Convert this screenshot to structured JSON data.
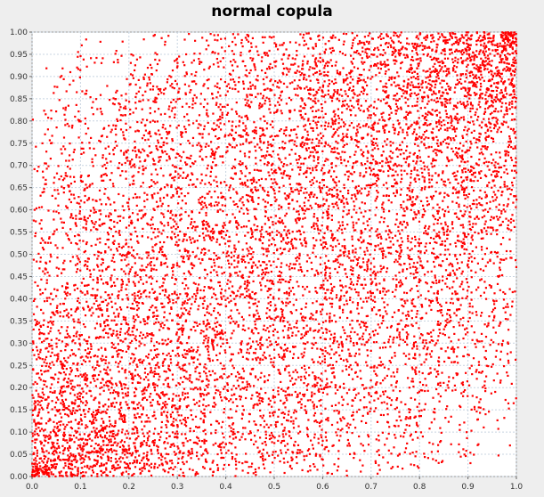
{
  "chart_data": {
    "type": "scatter",
    "title": "normal copula",
    "xlabel": "",
    "ylabel": "",
    "xlim": [
      0.0,
      1.0
    ],
    "ylim": [
      0.0,
      1.0
    ],
    "grid": true,
    "legend": "none",
    "point_color": "#ff0000",
    "sample_size": 10000,
    "correlation": 0.45,
    "x_ticks": [
      "0.0",
      "0.1",
      "0.2",
      "0.3",
      "0.4",
      "0.5",
      "0.6",
      "0.7",
      "0.8",
      "0.9",
      "1.0"
    ],
    "y_ticks": [
      "0.00",
      "0.05",
      "0.10",
      "0.15",
      "0.20",
      "0.25",
      "0.30",
      "0.35",
      "0.40",
      "0.45",
      "0.50",
      "0.55",
      "0.60",
      "0.65",
      "0.70",
      "0.75",
      "0.80",
      "0.85",
      "0.90",
      "0.95",
      "1.00"
    ]
  }
}
